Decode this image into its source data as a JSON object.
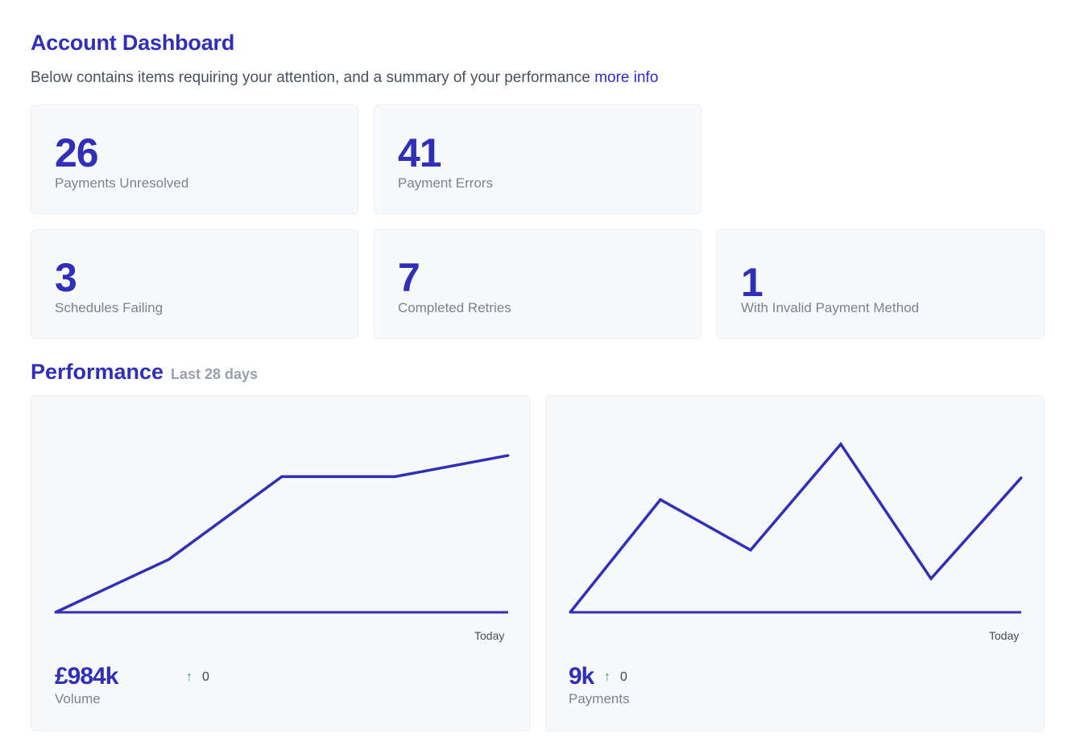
{
  "header": {
    "title": "Account Dashboard",
    "subtitle": "Below contains items requiring your attention, and a summary of your performance",
    "more_info_link": "more info"
  },
  "stats": [
    {
      "value": "26",
      "label": "Payments Unresolved"
    },
    {
      "value": "41",
      "label": "Payment Errors"
    },
    {
      "value": "3",
      "label": "Schedules Failing"
    },
    {
      "value": "7",
      "label": "Completed Retries"
    },
    {
      "value": "1",
      "label": "With Invalid Payment Method"
    }
  ],
  "performance": {
    "title": "Performance",
    "range": "Last 28 days"
  },
  "chart_data": [
    {
      "type": "line",
      "x_end_label": "Today",
      "values": [
        0,
        30,
        77,
        77,
        89
      ],
      "ylim": [
        0,
        100
      ],
      "metric": {
        "value": "£984k",
        "label": "Volume",
        "delta": "0"
      }
    },
    {
      "type": "line",
      "x_end_label": "Today",
      "values": [
        0,
        67,
        37,
        100,
        20,
        80
      ],
      "ylim": [
        0,
        100
      ],
      "metric": {
        "value": "9k",
        "label": "Payments",
        "delta": "0"
      }
    }
  ],
  "colors": {
    "accent": "#2f2fb8",
    "card_bg": "#f8f9fb",
    "up_arrow": "#1f9d55"
  },
  "icons": {
    "delta_arrow": "arrow-up-icon"
  }
}
